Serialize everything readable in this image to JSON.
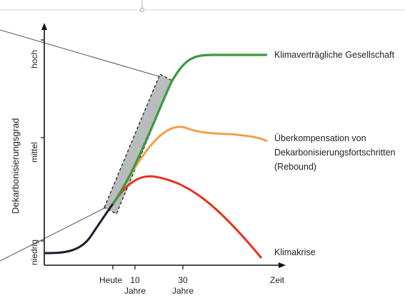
{
  "diagram": {
    "y_axis": {
      "title": "Dekarbonisierungsgrad",
      "levels": [
        "niedrig",
        "mittel",
        "hoch"
      ]
    },
    "x_axis": {
      "title": "Zeit",
      "ticks": [
        {
          "line1": "Heute",
          "line2": ""
        },
        {
          "line1": "10",
          "line2": "Jahre"
        },
        {
          "line1": "30",
          "line2": "Jahre"
        }
      ]
    },
    "curves": [
      {
        "key": "green",
        "color": "#3a9a3e",
        "label_lines": [
          "Klimaverträgliche Gesellschaft"
        ]
      },
      {
        "key": "orange",
        "color": "#f0a04b",
        "label_lines": [
          "Überkompensation von",
          "Dekarbonisierungsfortschritten",
          "(Rebound)"
        ]
      },
      {
        "key": "red",
        "color": "#e8321e",
        "label_lines": [
          "Klimakrise"
        ]
      }
    ],
    "baseline_color": "#1d1b2e",
    "band_color": "#b8bcbc"
  }
}
